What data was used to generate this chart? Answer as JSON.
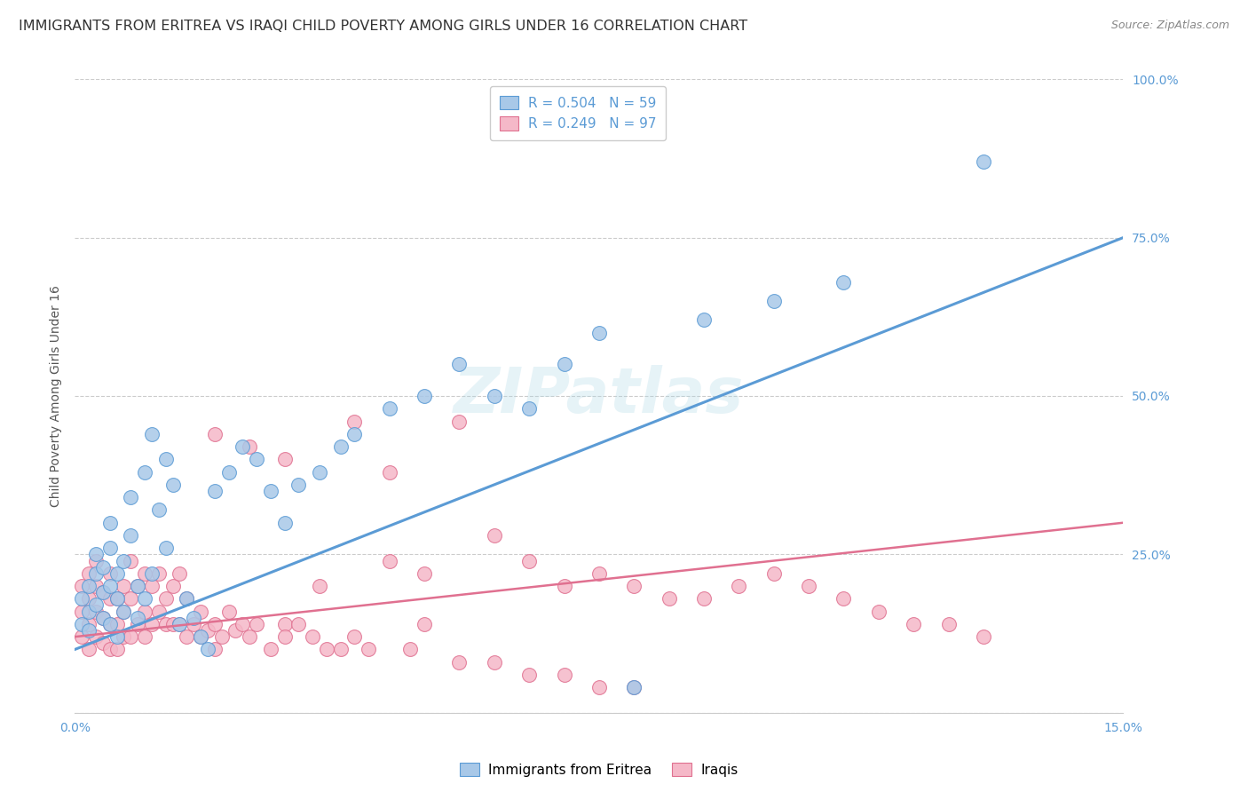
{
  "title": "IMMIGRANTS FROM ERITREA VS IRAQI CHILD POVERTY AMONG GIRLS UNDER 16 CORRELATION CHART",
  "source": "Source: ZipAtlas.com",
  "ylabel": "Child Poverty Among Girls Under 16",
  "xlim": [
    0.0,
    0.15
  ],
  "ylim": [
    0.0,
    1.0
  ],
  "xticks": [
    0.0,
    0.05,
    0.1,
    0.15
  ],
  "xticklabels": [
    "0.0%",
    "",
    "",
    "15.0%"
  ],
  "yticks": [
    0.0,
    0.25,
    0.5,
    0.75,
    1.0
  ],
  "yticklabels": [
    "",
    "25.0%",
    "50.0%",
    "75.0%",
    "100.0%"
  ],
  "grid_color": "#cccccc",
  "background_color": "#ffffff",
  "title_color": "#333333",
  "axis_color": "#5b9bd5",
  "eritrea_color": "#a8c8e8",
  "eritrea_color_edge": "#5b9bd5",
  "iraqi_color": "#f5b8c8",
  "iraqi_color_edge": "#e07090",
  "eritrea_R": "0.504",
  "eritrea_N": "59",
  "iraqi_R": "0.249",
  "iraqi_N": "97",
  "eritrea_x": [
    0.001,
    0.001,
    0.002,
    0.002,
    0.002,
    0.003,
    0.003,
    0.003,
    0.004,
    0.004,
    0.004,
    0.005,
    0.005,
    0.005,
    0.005,
    0.006,
    0.006,
    0.006,
    0.007,
    0.007,
    0.008,
    0.008,
    0.009,
    0.009,
    0.01,
    0.01,
    0.011,
    0.011,
    0.012,
    0.013,
    0.013,
    0.014,
    0.015,
    0.016,
    0.017,
    0.018,
    0.019,
    0.02,
    0.022,
    0.024,
    0.026,
    0.028,
    0.03,
    0.032,
    0.035,
    0.038,
    0.04,
    0.045,
    0.05,
    0.055,
    0.06,
    0.065,
    0.07,
    0.075,
    0.08,
    0.09,
    0.1,
    0.11,
    0.13
  ],
  "eritrea_y": [
    0.14,
    0.18,
    0.16,
    0.2,
    0.13,
    0.22,
    0.17,
    0.25,
    0.15,
    0.19,
    0.23,
    0.14,
    0.2,
    0.26,
    0.3,
    0.12,
    0.18,
    0.22,
    0.16,
    0.24,
    0.28,
    0.34,
    0.15,
    0.2,
    0.18,
    0.38,
    0.22,
    0.44,
    0.32,
    0.26,
    0.4,
    0.36,
    0.14,
    0.18,
    0.15,
    0.12,
    0.1,
    0.35,
    0.38,
    0.42,
    0.4,
    0.35,
    0.3,
    0.36,
    0.38,
    0.42,
    0.44,
    0.48,
    0.5,
    0.55,
    0.5,
    0.48,
    0.55,
    0.6,
    0.04,
    0.62,
    0.65,
    0.68,
    0.87
  ],
  "iraqi_x": [
    0.001,
    0.001,
    0.001,
    0.002,
    0.002,
    0.002,
    0.002,
    0.003,
    0.003,
    0.003,
    0.003,
    0.004,
    0.004,
    0.004,
    0.005,
    0.005,
    0.005,
    0.005,
    0.006,
    0.006,
    0.006,
    0.007,
    0.007,
    0.007,
    0.008,
    0.008,
    0.008,
    0.009,
    0.009,
    0.01,
    0.01,
    0.01,
    0.011,
    0.011,
    0.012,
    0.012,
    0.013,
    0.013,
    0.014,
    0.014,
    0.015,
    0.015,
    0.016,
    0.016,
    0.017,
    0.018,
    0.018,
    0.019,
    0.02,
    0.02,
    0.021,
    0.022,
    0.023,
    0.024,
    0.025,
    0.026,
    0.028,
    0.03,
    0.03,
    0.032,
    0.034,
    0.036,
    0.038,
    0.04,
    0.042,
    0.045,
    0.048,
    0.05,
    0.055,
    0.06,
    0.065,
    0.07,
    0.075,
    0.08,
    0.085,
    0.09,
    0.095,
    0.1,
    0.105,
    0.11,
    0.115,
    0.12,
    0.125,
    0.13,
    0.02,
    0.025,
    0.03,
    0.035,
    0.04,
    0.045,
    0.05,
    0.055,
    0.06,
    0.065,
    0.07,
    0.075,
    0.08
  ],
  "iraqi_y": [
    0.12,
    0.16,
    0.2,
    0.1,
    0.14,
    0.18,
    0.22,
    0.12,
    0.16,
    0.2,
    0.24,
    0.11,
    0.15,
    0.19,
    0.1,
    0.14,
    0.18,
    0.22,
    0.1,
    0.14,
    0.18,
    0.12,
    0.16,
    0.2,
    0.12,
    0.18,
    0.24,
    0.14,
    0.2,
    0.12,
    0.16,
    0.22,
    0.14,
    0.2,
    0.16,
    0.22,
    0.14,
    0.18,
    0.14,
    0.2,
    0.14,
    0.22,
    0.12,
    0.18,
    0.14,
    0.12,
    0.16,
    0.13,
    0.1,
    0.14,
    0.12,
    0.16,
    0.13,
    0.14,
    0.12,
    0.14,
    0.1,
    0.14,
    0.12,
    0.14,
    0.12,
    0.1,
    0.1,
    0.12,
    0.1,
    0.38,
    0.1,
    0.14,
    0.46,
    0.28,
    0.24,
    0.2,
    0.22,
    0.2,
    0.18,
    0.18,
    0.2,
    0.22,
    0.2,
    0.18,
    0.16,
    0.14,
    0.14,
    0.12,
    0.44,
    0.42,
    0.4,
    0.2,
    0.46,
    0.24,
    0.22,
    0.08,
    0.08,
    0.06,
    0.06,
    0.04,
    0.04
  ],
  "eritrea_trend_x": [
    0.0,
    0.15
  ],
  "eritrea_trend_y": [
    0.1,
    0.75
  ],
  "iraqi_trend_x": [
    0.0,
    0.15
  ],
  "iraqi_trend_y": [
    0.12,
    0.3
  ],
  "title_fontsize": 11.5,
  "label_fontsize": 10,
  "tick_fontsize": 10,
  "legend_fontsize": 11
}
